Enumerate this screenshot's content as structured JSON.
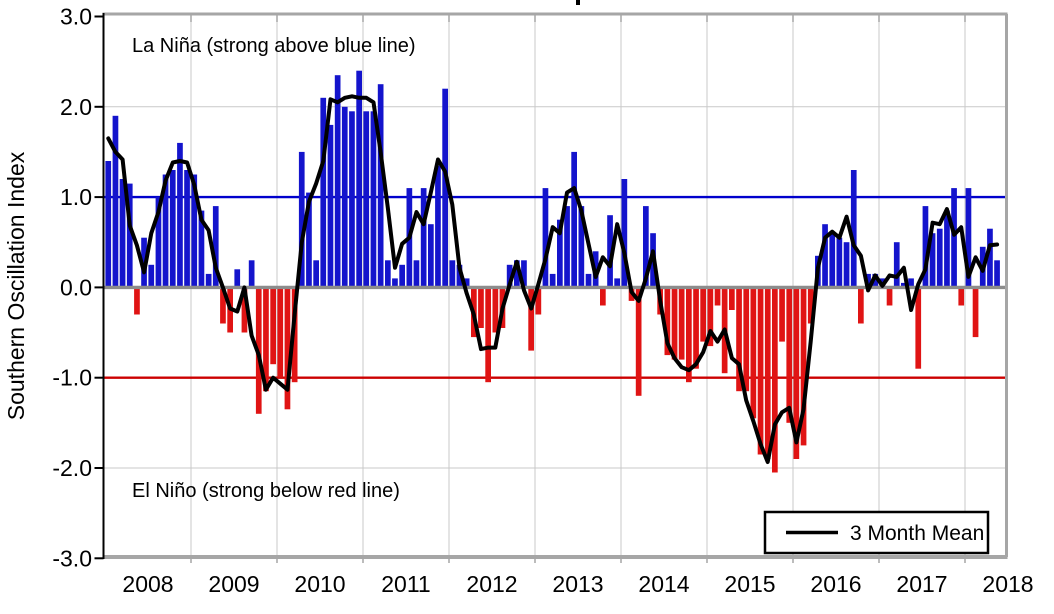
{
  "y_axis": {
    "title": "Southern Oscillation Index",
    "tick_labels": [
      "3.0",
      "2.0",
      "1.0",
      "0.0",
      "-1.0",
      "-2.0",
      "-3.0"
    ],
    "tick_values": [
      3,
      2,
      1,
      0,
      -1,
      -2,
      -3
    ]
  },
  "x_axis": {
    "year_labels": [
      "2008",
      "2009",
      "2010",
      "2011",
      "2012",
      "2013",
      "2014",
      "2015",
      "2016",
      "2017",
      "2018"
    ]
  },
  "annotations": {
    "la_nina": "La Niña (strong above blue line)",
    "el_nino": "El Niño (strong below red line)"
  },
  "legend": {
    "label": "3 Month Mean"
  },
  "colors": {
    "positive_bar": "#1414cc",
    "negative_bar": "#e01414",
    "la_nina_threshold_line": "#0000cc",
    "el_nino_threshold_line": "#cc0000",
    "zero_line": "#8c8c8c",
    "gridline": "#c9c9c9",
    "frame": "#a6a6a6",
    "mean_line": "#000000"
  },
  "chart_data": {
    "type": "bar",
    "title": "",
    "ylabel": "Southern Oscillation Index",
    "ylim": [
      -3.0,
      3.0
    ],
    "x_start_month": "2008-01",
    "x_end_month": "2018-05",
    "months_per_year": 12,
    "grid": "vertical year boundaries + horizontal at ±2.0",
    "legend_position": "bottom-right",
    "reference_lines": [
      {
        "value": 1.0,
        "meaning": "La Niña strong above",
        "color": "#0000cc"
      },
      {
        "value": -1.0,
        "meaning": "El Niño strong below",
        "color": "#cc0000"
      },
      {
        "value": 0.0,
        "meaning": "zero line",
        "color": "#8c8c8c"
      }
    ],
    "series": [
      {
        "name": "Monthly SOI",
        "style": "bars, blue positive / red negative",
        "values": [
          1.4,
          1.9,
          1.2,
          1.15,
          -0.3,
          0.55,
          0.25,
          1.0,
          1.25,
          1.3,
          1.6,
          1.3,
          1.25,
          0.85,
          0.15,
          0.9,
          -0.4,
          -0.5,
          0.2,
          -0.5,
          0.3,
          -1.4,
          -1.15,
          -0.85,
          -1.0,
          -1.35,
          -1.05,
          1.5,
          1.05,
          0.3,
          2.1,
          1.8,
          2.35,
          2.0,
          1.95,
          2.4,
          1.95,
          1.95,
          2.25,
          0.3,
          0.1,
          0.25,
          1.1,
          0.3,
          1.1,
          0.7,
          1.35,
          2.2,
          0.3,
          0.25,
          0.1,
          -0.55,
          -0.45,
          -1.05,
          -0.5,
          -0.45,
          0.25,
          0.3,
          0.3,
          -0.7,
          -0.3,
          1.1,
          0.15,
          0.75,
          0.9,
          1.5,
          0.9,
          0.15,
          0.4,
          -0.2,
          0.8,
          0.1,
          1.2,
          -0.15,
          -1.2,
          0.9,
          0.6,
          -0.3,
          -0.75,
          -0.8,
          -0.8,
          -1.05,
          -0.9,
          -0.6,
          -0.65,
          -0.2,
          -0.95,
          -0.25,
          -1.15,
          -1.15,
          -1.45,
          -1.85,
          -1.9,
          -2.05,
          -0.6,
          -1.5,
          -1.9,
          -1.75,
          -0.4,
          0.35,
          0.7,
          0.6,
          0.55,
          0.5,
          1.3,
          -0.4,
          0.15,
          0.15,
          0.1,
          -0.2,
          0.5,
          0.05,
          0.1,
          -0.9,
          0.9,
          0.6,
          0.65,
          0.85,
          1.1,
          -0.2,
          1.1,
          -0.55,
          0.45,
          0.65,
          0.3
        ]
      },
      {
        "name": "3 Month Mean",
        "style": "black line, centered 3-month running mean of Monthly SOI",
        "values": "computed from Monthly SOI"
      }
    ]
  }
}
